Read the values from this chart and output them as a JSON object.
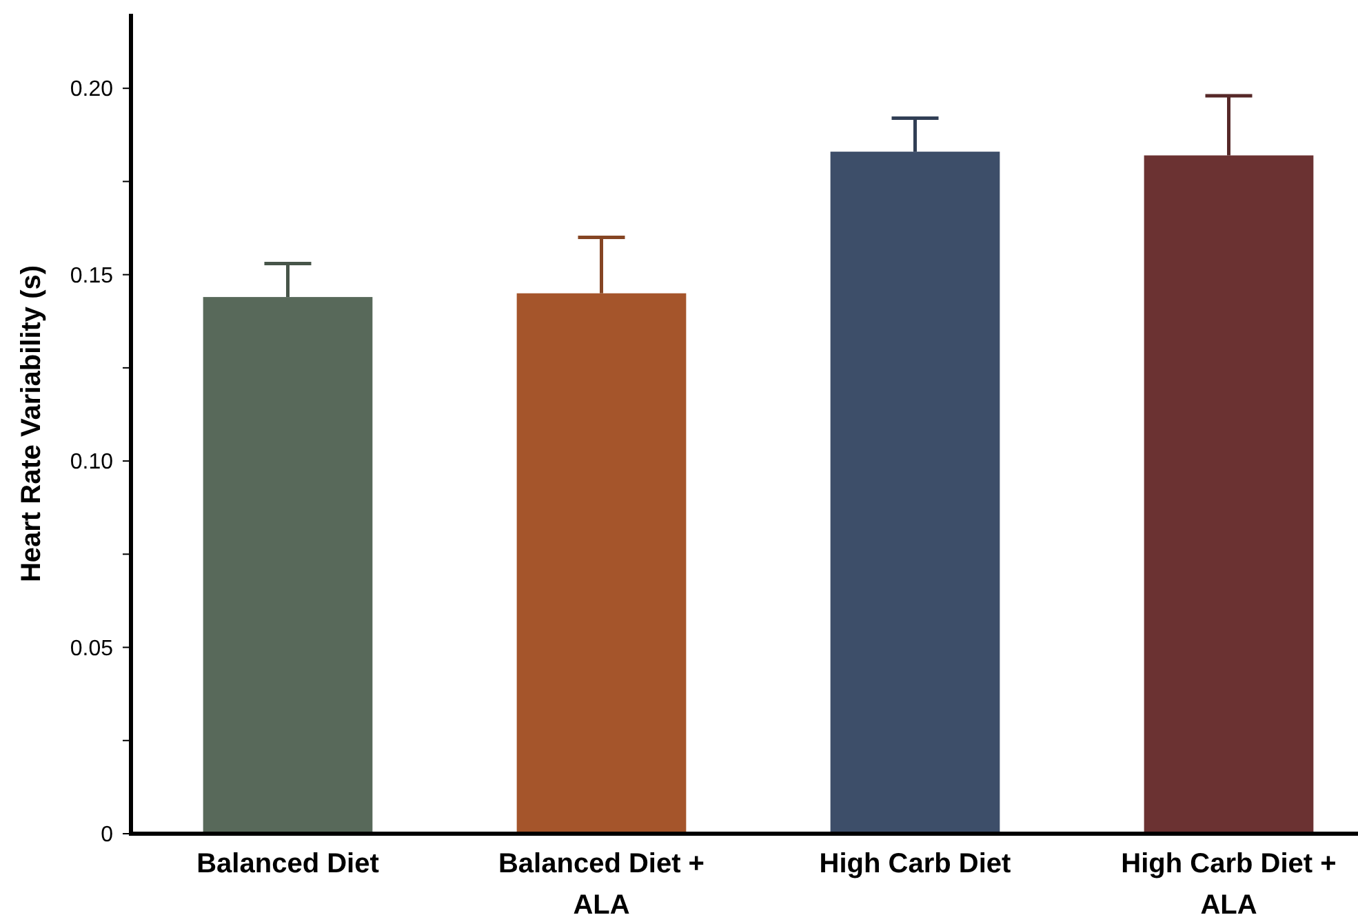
{
  "chart_data": {
    "type": "bar",
    "ylabel": "Heart Rate Variability (s)",
    "categories": [
      "Balanced Diet",
      "Balanced Diet + ALA",
      "High Carb Diet",
      "High Carb Diet + ALA"
    ],
    "values": [
      0.144,
      0.145,
      0.183,
      0.182
    ],
    "colors": [
      "#58695a",
      "#a5552b",
      "#3d4e69",
      "#6b3232"
    ],
    "errors": [
      [
        0.144,
        0.153
      ],
      [
        0.145,
        0.16
      ],
      [
        0.183,
        0.192
      ],
      [
        0.182,
        0.198
      ]
    ],
    "ylim": [
      0,
      0.22
    ],
    "yticks": [
      0,
      {
        "value": 0.025,
        "label": null
      },
      {
        "value": 0.05,
        "label": "0.05"
      },
      {
        "value": 0.075,
        "label": null
      },
      {
        "value": 0.1,
        "label": "0.10"
      },
      {
        "value": 0.125,
        "label": null
      },
      {
        "value": 0.15,
        "label": "0.15"
      },
      {
        "value": 0.175,
        "label": null
      },
      {
        "value": 0.2,
        "label": "0.20"
      }
    ],
    "grid": false
  }
}
